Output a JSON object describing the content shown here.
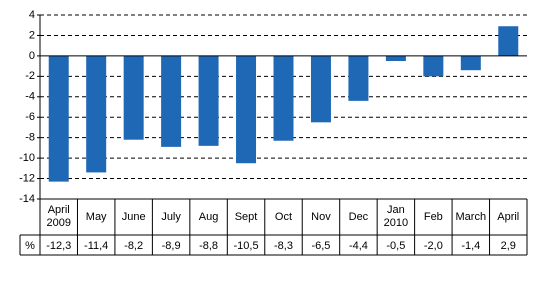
{
  "chart_data": {
    "type": "bar",
    "categories": [
      "April 2009",
      "May",
      "June",
      "July",
      "Aug",
      "Sept",
      "Oct",
      "Nov",
      "Dec",
      "Jan 2010",
      "Feb",
      "March",
      "April"
    ],
    "values": [
      -12.3,
      -11.4,
      -8.2,
      -8.9,
      -8.8,
      -10.5,
      -8.3,
      -6.5,
      -4.4,
      -0.5,
      -2.0,
      -1.4,
      2.9
    ],
    "value_labels": [
      "-12,3",
      "-11,4",
      "-8,2",
      "-8,9",
      "-8,8",
      "-10,5",
      "-8,3",
      "-6,5",
      "-4,4",
      "-0,5",
      "-2,0",
      "-1,4",
      "2,9"
    ],
    "unit_label": "%",
    "color": "#1f68b6",
    "ylim": [
      -14,
      4
    ],
    "yticks": [
      -14,
      -12,
      -10,
      -8,
      -6,
      -4,
      -2,
      0,
      2,
      4
    ],
    "grid": true
  }
}
